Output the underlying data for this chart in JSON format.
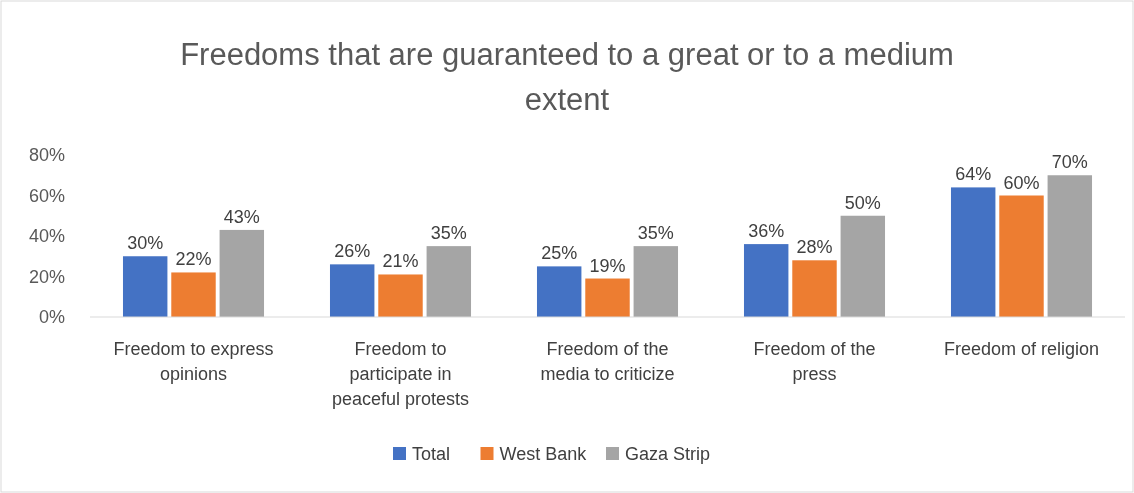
{
  "chart_data": {
    "type": "bar",
    "title": "Freedoms that are guaranteed to a great or to a medium extent",
    "categories": [
      "Freedom to express opinions",
      "Freedom to participate in peaceful protests",
      "Freedom of the media to criticize",
      "Freedom of the press",
      "Freedom of religion"
    ],
    "series": [
      {
        "name": "Total",
        "color": "#4472c4",
        "values": [
          30,
          26,
          25,
          36,
          64
        ],
        "value_labels": [
          "30%",
          "26%",
          "25%",
          "36%",
          "64%"
        ]
      },
      {
        "name": "West Bank",
        "color": "#ed7d31",
        "values": [
          22,
          21,
          19,
          28,
          60
        ],
        "value_labels": [
          "22%",
          "21%",
          "19%",
          "28%",
          "60%"
        ]
      },
      {
        "name": "Gaza Strip",
        "color": "#a5a5a5",
        "values": [
          43,
          35,
          35,
          50,
          70
        ],
        "value_labels": [
          "43%",
          "35%",
          "35%",
          "50%",
          "70%"
        ]
      }
    ],
    "ylim": [
      0,
      80
    ],
    "yticks": [
      {
        "value": 0,
        "label": "0%"
      },
      {
        "value": 20,
        "label": "20%"
      },
      {
        "value": 40,
        "label": "40%"
      },
      {
        "value": 60,
        "label": "60%"
      },
      {
        "value": 80,
        "label": "80%"
      }
    ],
    "grid": false,
    "legend": "bottom"
  }
}
